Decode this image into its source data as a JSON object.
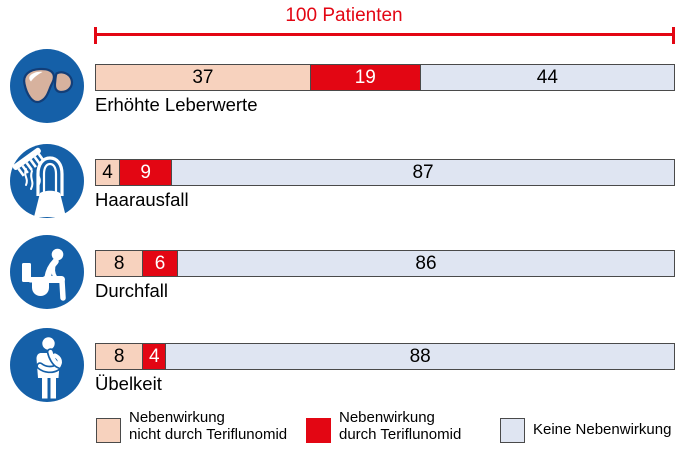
{
  "header": {
    "label": "100 Patienten",
    "color": "#e30613"
  },
  "chart_data": {
    "type": "bar",
    "variant": "horizontal-stacked",
    "total": 100,
    "unit": "Patienten",
    "title": "100 Patienten",
    "categories": [
      "Erhöhte Leberwerte",
      "Haarausfall",
      "Durchfall",
      "Übelkeit"
    ],
    "series": [
      {
        "name": "Nebenwirkung nicht durch Teriflunomid",
        "color": "#f7d2be",
        "values": [
          37,
          4,
          8,
          8
        ]
      },
      {
        "name": "Nebenwirkung durch Teriflunomid",
        "color": "#e30613",
        "values": [
          19,
          9,
          6,
          4
        ]
      },
      {
        "name": "Keine Nebenwirkung",
        "color": "#dfe5f2",
        "values": [
          44,
          87,
          86,
          88
        ]
      }
    ],
    "rows": [
      {
        "label": "Erhöhte Leberwerte",
        "icon": "liver-icon",
        "segments": [
          {
            "value": 37,
            "color": "#f7d2be",
            "text_color": "#000000"
          },
          {
            "value": 19,
            "color": "#e30613",
            "text_color": "#ffffff"
          },
          {
            "value": 44,
            "color": "#dfe5f2",
            "text_color": "#000000"
          }
        ]
      },
      {
        "label": "Haarausfall",
        "icon": "hair-loss-icon",
        "segments": [
          {
            "value": 4,
            "color": "#f7d2be",
            "text_color": "#000000"
          },
          {
            "value": 9,
            "color": "#e30613",
            "text_color": "#ffffff"
          },
          {
            "value": 87,
            "color": "#dfe5f2",
            "text_color": "#000000"
          }
        ]
      },
      {
        "label": "Durchfall",
        "icon": "diarrhea-icon",
        "segments": [
          {
            "value": 8,
            "color": "#f7d2be",
            "text_color": "#000000"
          },
          {
            "value": 6,
            "color": "#e30613",
            "text_color": "#ffffff"
          },
          {
            "value": 86,
            "color": "#dfe5f2",
            "text_color": "#000000"
          }
        ]
      },
      {
        "label": "Übelkeit",
        "icon": "nausea-icon",
        "segments": [
          {
            "value": 8,
            "color": "#f7d2be",
            "text_color": "#000000"
          },
          {
            "value": 4,
            "color": "#e30613",
            "text_color": "#ffffff"
          },
          {
            "value": 88,
            "color": "#dfe5f2",
            "text_color": "#000000"
          }
        ]
      }
    ]
  },
  "legend": {
    "items": [
      {
        "lines": [
          "Nebenwirkung",
          "nicht durch Teriflunomid"
        ],
        "color": "#f7d2be",
        "border": "#4a4a4a"
      },
      {
        "lines": [
          "Nebenwirkung",
          "durch Teriflunomid"
        ],
        "color": "#e30613",
        "border": "#e30613"
      },
      {
        "lines": [
          "Keine Nebenwirkung",
          ""
        ],
        "color": "#dfe5f2",
        "border": "#4a4a4a"
      }
    ]
  },
  "style": {
    "bar_border": "#4a4a4a",
    "icon_blue": "#1560a8"
  }
}
